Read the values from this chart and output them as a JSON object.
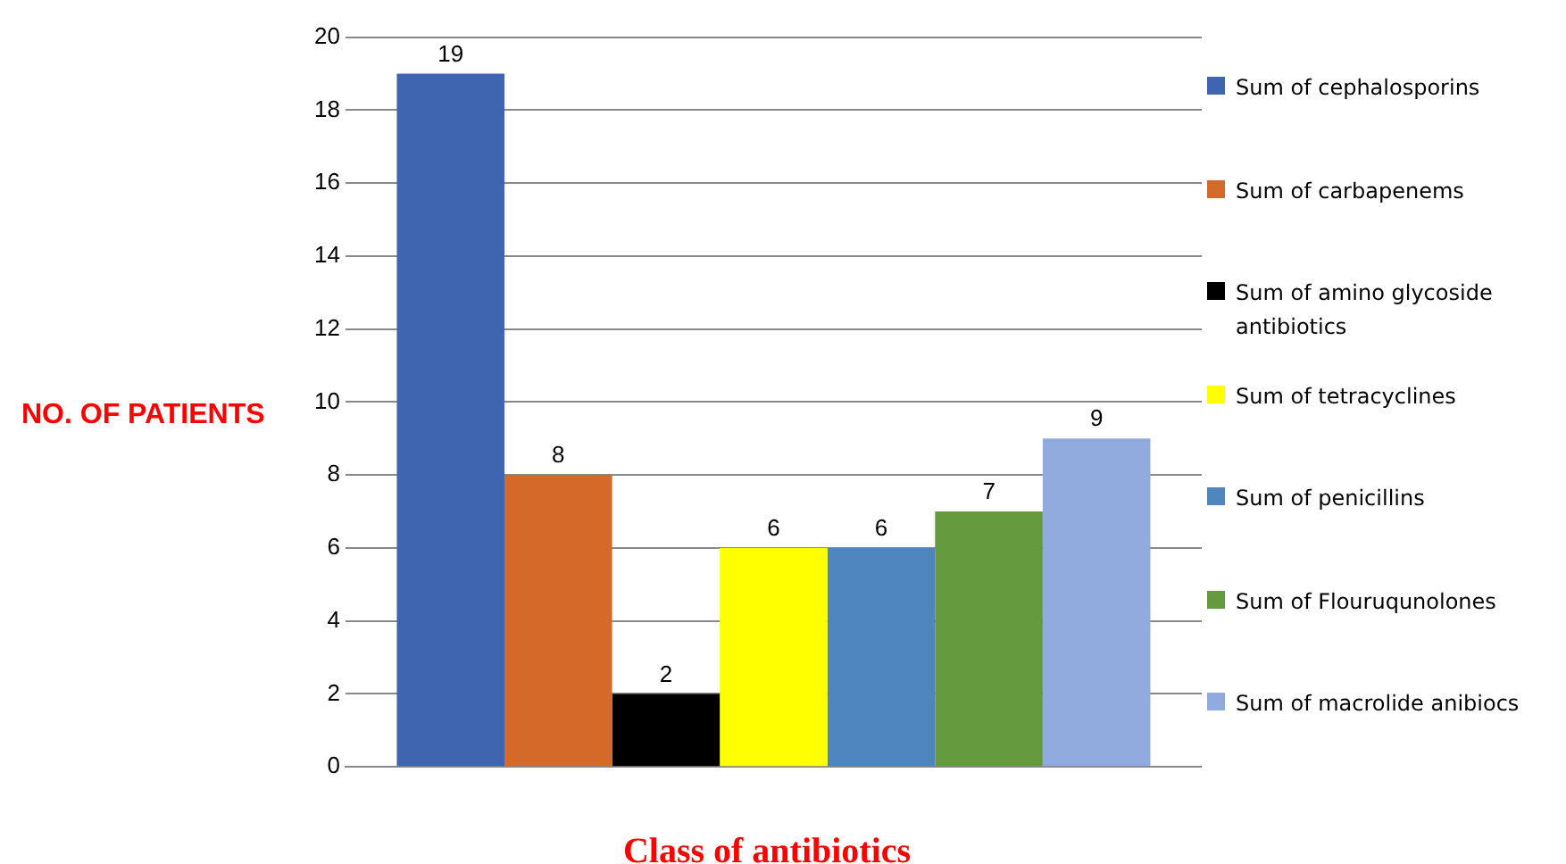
{
  "chart_data": {
    "type": "bar",
    "ylabel": "NO. OF PATIENTS",
    "xlabel": "Class of antibiotics",
    "categories": [
      null
    ],
    "series": [
      {
        "name": "Sum of cephalosporins",
        "color": "#3f64b0",
        "values": [
          19
        ]
      },
      {
        "name": "Sum of carbapenems",
        "color": "#d4692a",
        "values": [
          8
        ]
      },
      {
        "name": "Sum of amino glycoside antibiotics",
        "color": "#000000",
        "values": [
          2
        ]
      },
      {
        "name": "Sum of tetracyclines",
        "color": "#ffff00",
        "values": [
          6
        ]
      },
      {
        "name": "Sum of penicillins",
        "color": "#4f86be",
        "values": [
          6
        ]
      },
      {
        "name": "Sum of Flouruqunolones",
        "color": "#659a3e",
        "values": [
          7
        ]
      },
      {
        "name": "Sum of macrolide anibiocs",
        "color": "#8faadc",
        "values": [
          9
        ]
      }
    ],
    "ylim": [
      0,
      20
    ],
    "yticks": [
      0,
      2,
      4,
      6,
      8,
      10,
      12,
      14,
      16,
      18,
      20
    ],
    "grid": "y",
    "legend": "right",
    "data_labels": true
  }
}
